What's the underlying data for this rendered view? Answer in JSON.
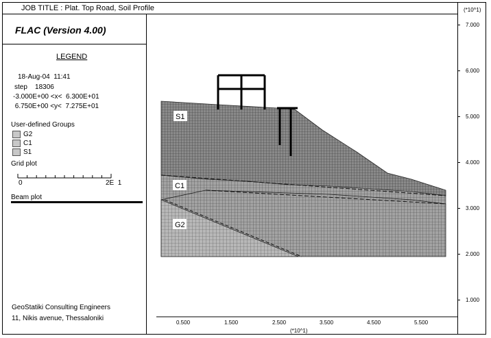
{
  "header": {
    "job_title": "JOB TITLE : Plat. Top Road, Soil Profile",
    "exponent_top": "(*10^1)"
  },
  "panel": {
    "version": "FLAC (Version 4.00)",
    "legend_heading": "LEGEND",
    "date": "18-Aug-04  11:41",
    "step": "step    18306",
    "x_range": "-3.000E+00 <x<  6.300E+01",
    "y_range": " 6.750E+00 <y<  7.275E+01",
    "groups_heading": "User-defined Groups",
    "groups": [
      "G2",
      "C1",
      "S1"
    ],
    "grid_plot_heading": "Grid plot",
    "grid_scale_left": "0",
    "grid_scale_right": "2E  1",
    "beam_plot_heading": "Beam plot",
    "footer_line1": "GeoStatiki Consulting Engineers",
    "footer_line2": "11, Nikis avenue, Thessaloniki"
  },
  "axes": {
    "y_ticks": [
      "7.000",
      "6.000",
      "5.000",
      "4.000",
      "3.000",
      "2.000",
      "1.000"
    ],
    "x_ticks": [
      "0.500",
      "1.500",
      "2.500",
      "3.500",
      "4.500",
      "5.500"
    ],
    "x_exponent": "(*10^1)"
  },
  "regions": {
    "s1_label": "S1",
    "c1_label": "C1",
    "g2_label": "G2"
  },
  "colors": {
    "s1_fill": "#6e6e6e",
    "c1_fill": "#8c8c8c",
    "g2_fill": "#a6a6a6",
    "beam": "#000000"
  }
}
